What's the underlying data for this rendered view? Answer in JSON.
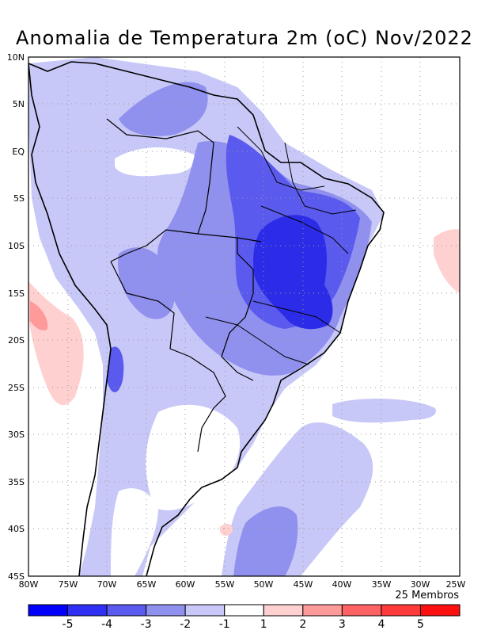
{
  "title": "Anomalia de Temperatura 2m (oC) Nov/2022",
  "members": "25 Membros",
  "lat_ticks": [
    "10N",
    "5N",
    "EQ",
    "5S",
    "10S",
    "15S",
    "20S",
    "25S",
    "30S",
    "35S",
    "40S",
    "45S"
  ],
  "lon_ticks": [
    "80W",
    "75W",
    "70W",
    "65W",
    "60W",
    "55W",
    "50W",
    "45W",
    "40W",
    "35W",
    "30W",
    "25W"
  ],
  "colorbar": {
    "colors": [
      "#0000ff",
      "#3030f5",
      "#5a5aee",
      "#9090ee",
      "#c8c8f8",
      "#ffffff",
      "#ffd0d0",
      "#ff9a9a",
      "#ff6262",
      "#ff3a3a",
      "#ff1010"
    ],
    "labels": [
      "-5",
      "-4",
      "-3",
      "-2",
      "-1",
      "1",
      "2",
      "3",
      "4",
      "5"
    ]
  },
  "legend_levels": {
    "strong_cold": "#2c2ce8",
    "cold": "#5a5aee",
    "mid_cold": "#8c8cec",
    "light_cold": "#c8c8f8",
    "neutral": "#ffffff",
    "light_warm": "#ffc8c8",
    "warm": "#ff9a9a"
  }
}
